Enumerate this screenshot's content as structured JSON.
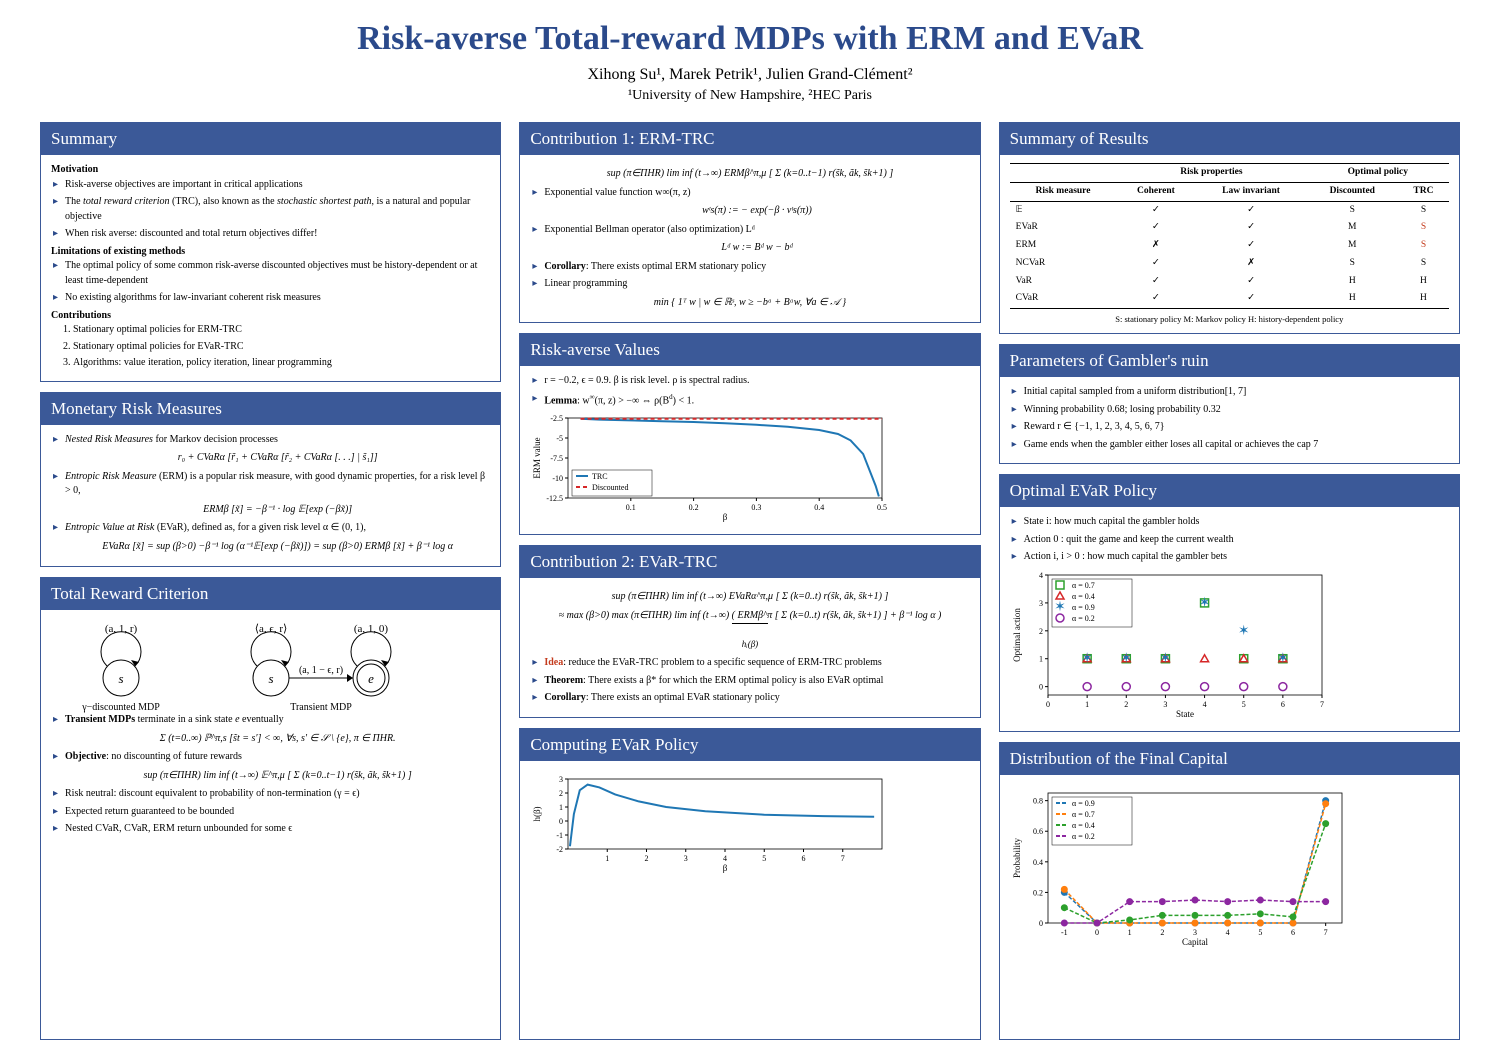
{
  "header": {
    "title": "Risk-averse Total-reward MDPs with ERM and EVaR",
    "authors": "Xihong Su¹, Marek Petrik¹, Julien Grand-Clément²",
    "affil": "¹University of New Hampshire, ²HEC Paris"
  },
  "colors": {
    "brand": "#3b5998",
    "title": "#2b4a8b",
    "idea": "#c43b1d",
    "axis": "#000000",
    "grid": "#e0e0e0"
  },
  "summary": {
    "heading": "Summary",
    "motivation_label": "Motivation",
    "motivation": [
      "Risk-averse objectives are important in critical applications",
      "The total reward criterion (TRC), also known as the stochastic shortest path, is a natural and popular objective",
      "When risk averse: discounted and total return objectives differ!"
    ],
    "limitations_label": "Limitations of existing methods",
    "limitations": [
      "The optimal policy of some common risk-averse discounted objectives must be history-dependent or at least time-dependent",
      "No existing algorithms for law-invariant coherent risk measures"
    ],
    "contrib_label": "Contributions",
    "contributions": [
      "Stationary optimal policies for ERM-TRC",
      "Stationary optimal policies for EVaR-TRC",
      "Algorithms: value iteration, policy iteration, linear programming"
    ]
  },
  "monetary": {
    "heading": "Monetary Risk Measures",
    "nested_label": "Nested Risk Measures for Markov decision processes",
    "nested_formula": "r₀ + CVaRα [r̃₁ + CVaRα [r̃₂ + CVaRα [. . .] | s̃₁]]",
    "erm_label": "Entropic Risk Measure (ERM) is a popular risk measure, with good dynamic properties, for a risk level β > 0,",
    "erm_formula": "ERMβ [x̃]  =  −β⁻¹ · log 𝔼[exp (−βx̃)]",
    "evar_label": "Entropic Value at Risk (EVaR), defined as, for a given risk level α ∈ (0, 1),",
    "evar_formula": "EVaRα [x̃]  =  sup (β>0) −β⁻¹ log (α⁻¹𝔼[exp (−βx̃)])  =  sup (β>0) ERMβ [x̃] + β⁻¹ log α"
  },
  "trc": {
    "heading": "Total Reward Criterion",
    "diagram_labels": {
      "arc1": "(a, 1, r)",
      "arc2": "⟨a, ϵ, r⟩",
      "arc3": "(a, 1, 0)",
      "edge": "(a, 1 − ϵ, r)",
      "s1": "s",
      "s2": "s",
      "e": "e",
      "left_cap": "γ−discounted MDP",
      "right_cap": "Transient MDP"
    },
    "items": [
      "Transient MDPs terminate in a sink state e eventually",
      "Objective: no discounting of future rewards",
      "Risk neutral: discount equivalent to probability of non-termination (γ = ϵ)",
      "Expected return guaranteed to be bounded",
      "Nested CVaR, CVaR, ERM return unbounded for some ϵ"
    ],
    "formula1": "Σ (t=0..∞) ℙ^π,s [s̃t = s′]  <  ∞,     ∀s, s′ ∈ 𝒮 \\ {e}, π ∈ ΠHR.",
    "formula2": "sup (π∈ΠHR) lim inf (t→∞) 𝔼^π,μ [ Σ (k=0..t−1) r(s̃k, ãk, s̃k+1) ]"
  },
  "c1": {
    "heading": "Contribution 1: ERM-TRC",
    "formula_obj": "sup (π∈ΠHR) lim inf (t→∞) ERMβ^π,μ [ Σ (k=0..t−1) r(s̃k, ãk, s̃k+1) ]",
    "bullet_exp": "Exponential value function w∞(π, z)",
    "formula_w": "wᵗs(π)  :=  − exp(−β · vᵗs(π))",
    "bullet_bell": "Exponential Bellman operator (also optimization) Lᵈ",
    "formula_L": "Lᵈ w  :=  Bᵈ w − bᵈ",
    "cor": "Corollary: There exists optimal ERM stationary policy",
    "lp": "Linear programming",
    "formula_lp": "min { 1ᵀ w  |  w ∈ ℝˢ, w ≥ −bᵃ + Bᵃw, ∀a ∈ 𝒜 }"
  },
  "rav": {
    "heading": "Risk-averse Values",
    "params": "r = −0.2, ϵ = 0.9. β is risk level. ρ is spectral radius.",
    "lemma": "Lemma:  w∞(π, z) > −∞   ⇔   ρ(Bᵈ) < 1.",
    "chart": {
      "type": "line",
      "xlim": [
        0,
        0.5
      ],
      "ylim": [
        -12.5,
        -2.5
      ],
      "xticks": [
        0.1,
        0.2,
        0.3,
        0.4,
        0.5
      ],
      "yticks": [
        -12.5,
        -10.0,
        -7.5,
        -5.0,
        -2.5
      ],
      "xlabel": "β",
      "ylabel": "ERM value",
      "series": [
        {
          "name": "TRC",
          "color": "#1f77b4",
          "width": 2,
          "x": [
            0.02,
            0.05,
            0.1,
            0.15,
            0.2,
            0.25,
            0.3,
            0.35,
            0.4,
            0.43,
            0.45,
            0.47,
            0.48,
            0.49,
            0.495
          ],
          "y": [
            -2.6,
            -2.7,
            -2.8,
            -2.9,
            -3.0,
            -3.15,
            -3.35,
            -3.6,
            -4.0,
            -4.5,
            -5.3,
            -7.0,
            -9.0,
            -11.0,
            -12.3
          ]
        },
        {
          "name": "Discounted",
          "color": "#d62728",
          "dash": "4 3",
          "width": 2,
          "x": [
            0.02,
            0.5
          ],
          "y": [
            -2.6,
            -2.6
          ]
        }
      ],
      "legend_pos": "bottom-left"
    }
  },
  "c2": {
    "heading": "Contribution 2: EVaR-TRC",
    "formula1": "sup (π∈ΠHR) lim inf (t→∞) EVaRα^π,μ [ Σ (k=0..t) r(s̃k, ãk, s̃k+1) ]",
    "formula2": "≈ max (β>0) max (π∈ΠHR) lim inf (t→∞) ( ERMβ^π [ Σ (k=0..t) r(s̃k, ãk, s̃k+1) ] + β⁻¹ log α )",
    "under": "hᵢ(β)",
    "bullets": [
      "Idea: reduce the EVaR-TRC problem to a specific sequence of ERM-TRC problems",
      "Theorem: There exists a β* for which the ERM optimal policy is also EVaR optimal",
      "Corollary: There exists an optimal EVaR stationary policy"
    ]
  },
  "compute": {
    "heading": "Computing EVaR Policy",
    "chart": {
      "type": "line",
      "xlim": [
        0,
        8
      ],
      "ylim": [
        -2,
        3
      ],
      "xticks": [
        1,
        2,
        3,
        4,
        5,
        6,
        7
      ],
      "yticks": [
        -2,
        -1,
        0,
        1,
        2,
        3
      ],
      "xlabel": "β",
      "ylabel": "h(β)",
      "series": [
        {
          "name": "h",
          "color": "#1f77b4",
          "width": 2,
          "x": [
            0.05,
            0.15,
            0.3,
            0.5,
            0.8,
            1.2,
            1.8,
            2.5,
            3.5,
            5.0,
            6.5,
            7.8
          ],
          "y": [
            -1.8,
            0.5,
            2.2,
            2.6,
            2.4,
            1.9,
            1.4,
            1.0,
            0.7,
            0.45,
            0.35,
            0.3
          ]
        }
      ]
    }
  },
  "results": {
    "heading": "Summary of Results",
    "col_group1": "Risk properties",
    "col_group2": "Optimal policy",
    "cols": [
      "Risk measure",
      "Coherent",
      "Law invariant",
      "Discounted",
      "TRC"
    ],
    "rows": [
      [
        "𝔼",
        "✓",
        "✓",
        "S",
        "S"
      ],
      [
        "EVaR",
        "✓",
        "✓",
        "M",
        "S*"
      ],
      [
        "ERM",
        "✗",
        "✓",
        "M",
        "S*"
      ],
      [
        "NCVaR",
        "✓",
        "✗",
        "S",
        "S"
      ],
      [
        "VaR",
        "✓",
        "✓",
        "H",
        "H"
      ],
      [
        "CVaR",
        "✓",
        "✓",
        "H",
        "H"
      ]
    ],
    "legend": "S: stationary policy     M: Markov policy     H: history-dependent policy"
  },
  "gambler": {
    "heading": "Parameters of Gambler's ruin",
    "items": [
      "Initial capital sampled from a uniform distribution[1, 7]",
      "Winning probability 0.68; losing probability 0.32",
      "Reward r ∈ {−1, 1, 2, 3, 4, 5, 6, 7}",
      "Game ends when the gambler either loses all capital or achieves the cap 7"
    ]
  },
  "evarpol": {
    "heading": "Optimal EVaR Policy",
    "items": [
      "State i: how much capital the gambler holds",
      "Action 0 : quit the game and keep the current wealth",
      "Action i, i > 0 :  how much capital the gambler bets"
    ],
    "chart": {
      "type": "scatter",
      "xlim": [
        0,
        7
      ],
      "ylim": [
        -0.3,
        4
      ],
      "xticks": [
        0,
        1,
        2,
        3,
        4,
        5,
        6,
        7
      ],
      "yticks": [
        0,
        1,
        2,
        3,
        4
      ],
      "xlabel": "State",
      "ylabel": "Optimal action",
      "series": [
        {
          "name": "α = 0.7",
          "marker": "square",
          "color": "#2ca02c",
          "fill": "none",
          "pts": [
            [
              1,
              1
            ],
            [
              2,
              1
            ],
            [
              3,
              1
            ],
            [
              4,
              3
            ],
            [
              5,
              1
            ],
            [
              6,
              1
            ]
          ]
        },
        {
          "name": "α = 0.4",
          "marker": "triangle",
          "color": "#d62728",
          "fill": "none",
          "pts": [
            [
              1,
              1
            ],
            [
              2,
              1
            ],
            [
              3,
              1
            ],
            [
              4,
              1
            ],
            [
              5,
              1
            ],
            [
              6,
              1
            ]
          ]
        },
        {
          "name": "α = 0.9",
          "marker": "star",
          "color": "#1f77b4",
          "fill": "#1f77b4",
          "pts": [
            [
              1,
              1
            ],
            [
              2,
              1
            ],
            [
              3,
              1
            ],
            [
              4,
              3
            ],
            [
              5,
              2
            ],
            [
              6,
              1
            ]
          ]
        },
        {
          "name": "α = 0.2",
          "marker": "circle",
          "color": "#8c27a0",
          "fill": "none",
          "pts": [
            [
              1,
              0
            ],
            [
              2,
              0
            ],
            [
              3,
              0
            ],
            [
              4,
              0
            ],
            [
              5,
              0
            ],
            [
              6,
              0
            ]
          ]
        }
      ],
      "legend_pos": "top-left"
    }
  },
  "dist": {
    "heading": "Distribution of the Final Capital",
    "chart": {
      "type": "line-markers",
      "xlim": [
        -1.5,
        7.5
      ],
      "ylim": [
        0,
        0.85
      ],
      "xticks": [
        -1,
        0,
        1,
        2,
        3,
        4,
        5,
        6,
        7
      ],
      "yticks": [
        0,
        0.2,
        0.4,
        0.6,
        0.8
      ],
      "xlabel": "Capital",
      "ylabel": "Probability",
      "series": [
        {
          "name": "α = 0.9",
          "color": "#1f77b4",
          "dash": "4 2",
          "x": [
            -1,
            0,
            1,
            2,
            3,
            4,
            5,
            6,
            7
          ],
          "y": [
            0.2,
            0,
            0,
            0,
            0,
            0,
            0,
            0,
            0.8
          ]
        },
        {
          "name": "α = 0.7",
          "color": "#ff7f0e",
          "dash": "4 2",
          "x": [
            -1,
            0,
            1,
            2,
            3,
            4,
            5,
            6,
            7
          ],
          "y": [
            0.22,
            0,
            0,
            0,
            0,
            0,
            0,
            0,
            0.78
          ]
        },
        {
          "name": "α = 0.4",
          "color": "#2ca02c",
          "dash": "4 2",
          "x": [
            -1,
            0,
            1,
            2,
            3,
            4,
            5,
            6,
            7
          ],
          "y": [
            0.1,
            0,
            0.02,
            0.05,
            0.05,
            0.05,
            0.06,
            0.04,
            0.65
          ]
        },
        {
          "name": "α = 0.2",
          "color": "#8c27a0",
          "dash": "4 2",
          "x": [
            -1,
            0,
            1,
            2,
            3,
            4,
            5,
            6,
            7
          ],
          "y": [
            0,
            0,
            0.14,
            0.14,
            0.15,
            0.14,
            0.15,
            0.14,
            0.14
          ]
        }
      ],
      "legend_pos": "top-left"
    }
  }
}
